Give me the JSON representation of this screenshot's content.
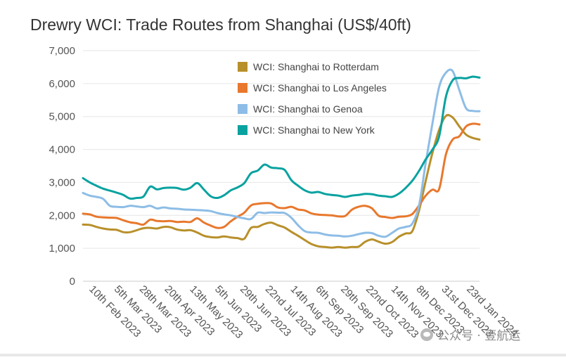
{
  "chart_data": {
    "type": "line",
    "title": "Drewry WCI: Trade Routes from Shanghai (US$/40ft)",
    "xlabel": "",
    "ylabel": "",
    "ylim": [
      0,
      7000
    ],
    "yticks": [
      "0",
      "1,000",
      "2,000",
      "3,000",
      "4,000",
      "5,000",
      "6,000",
      "7,000"
    ],
    "ytick_values": [
      0,
      1000,
      2000,
      3000,
      4000,
      5000,
      6000,
      7000
    ],
    "xticks": [
      "10th Feb 2023",
      "5th Mar 2023",
      "28th Mar 2023",
      "20th Apr 2023",
      "13th May 2023",
      "5th Jun 2023",
      "29th Jun 2023",
      "22nd Jul 2023",
      "14th Aug 2023",
      "6th Sep 2023",
      "29th Sep 2023",
      "22nd Oct 2023",
      "14th Nov 2023",
      "8th Dec 2023",
      "31st Dec 2023",
      "23rd Jan 2024"
    ],
    "grid": true,
    "legend_position": "top-right",
    "series": [
      {
        "name": "WCI: Shanghai to Rotterdam",
        "color": "#b8902b",
        "values": [
          1720,
          1710,
          1650,
          1600,
          1570,
          1560,
          1490,
          1490,
          1550,
          1610,
          1620,
          1600,
          1650,
          1640,
          1570,
          1540,
          1550,
          1480,
          1380,
          1340,
          1330,
          1360,
          1330,
          1310,
          1290,
          1620,
          1650,
          1740,
          1780,
          1700,
          1630,
          1500,
          1380,
          1250,
          1130,
          1060,
          1040,
          1020,
          1040,
          1020,
          1040,
          1050,
          1200,
          1270,
          1200,
          1140,
          1190,
          1350,
          1450,
          1520,
          2150,
          3050,
          3900,
          4600,
          5020,
          4970,
          4700,
          4450,
          4350,
          4300
        ]
      },
      {
        "name": "WCI: Shanghai to Los Angeles",
        "color": "#e8782d",
        "values": [
          2050,
          2030,
          1960,
          1940,
          1930,
          1920,
          1850,
          1790,
          1760,
          1720,
          1870,
          1830,
          1820,
          1830,
          1800,
          1810,
          1800,
          1910,
          1780,
          1690,
          1620,
          1650,
          1820,
          1960,
          2080,
          2300,
          2350,
          2370,
          2360,
          2240,
          2220,
          2260,
          2180,
          2150,
          2060,
          2020,
          2010,
          2000,
          1970,
          1980,
          2170,
          2260,
          2290,
          2210,
          1990,
          1950,
          1920,
          1960,
          1970,
          2040,
          2300,
          2600,
          2780,
          2800,
          3850,
          4300,
          4400,
          4700,
          4780,
          4760
        ]
      },
      {
        "name": "WCI: Shanghai to Genoa",
        "color": "#8dbde6",
        "values": [
          2680,
          2600,
          2560,
          2500,
          2290,
          2260,
          2250,
          2290,
          2270,
          2250,
          2290,
          2210,
          2240,
          2210,
          2200,
          2180,
          2170,
          2160,
          2150,
          2130,
          2070,
          2030,
          2000,
          1950,
          1910,
          1890,
          2080,
          2070,
          2090,
          2080,
          2070,
          1930,
          1700,
          1520,
          1480,
          1470,
          1420,
          1390,
          1380,
          1360,
          1380,
          1430,
          1470,
          1460,
          1380,
          1350,
          1470,
          1600,
          1650,
          1750,
          2300,
          3600,
          4800,
          5900,
          6330,
          6380,
          5800,
          5250,
          5170,
          5160
        ]
      },
      {
        "name": "WCI: Shanghai to New York",
        "color": "#08a2a0",
        "values": [
          3130,
          3000,
          2900,
          2810,
          2750,
          2690,
          2620,
          2510,
          2530,
          2570,
          2870,
          2790,
          2830,
          2840,
          2830,
          2780,
          2840,
          2980,
          2780,
          2580,
          2530,
          2610,
          2760,
          2850,
          2980,
          3280,
          3360,
          3540,
          3450,
          3430,
          3380,
          3070,
          2900,
          2760,
          2690,
          2710,
          2650,
          2620,
          2600,
          2560,
          2600,
          2620,
          2650,
          2640,
          2600,
          2580,
          2560,
          2660,
          2830,
          3050,
          3350,
          3700,
          4000,
          4400,
          5600,
          6100,
          6170,
          6160,
          6210,
          6180
        ]
      }
    ]
  },
  "watermark": {
    "icon": "wechat-icon",
    "text": "公众号 · 壹航运"
  }
}
